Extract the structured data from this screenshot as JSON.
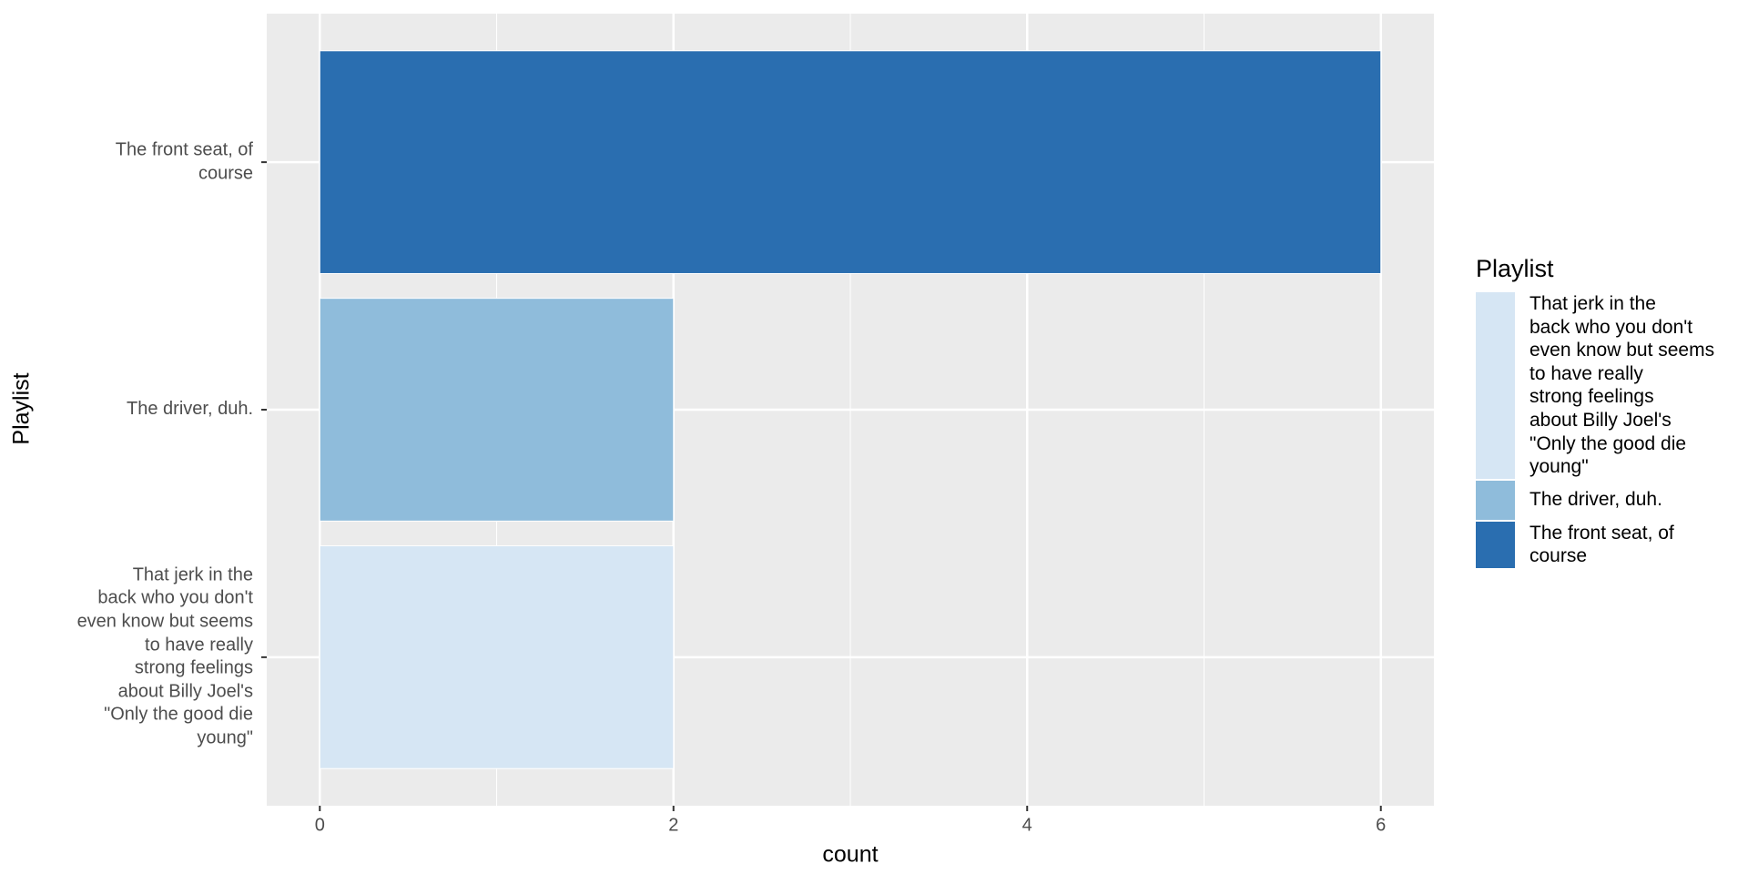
{
  "chart_data": {
    "type": "bar",
    "orientation": "horizontal",
    "categories": [
      "That jerk in the\nback who you don't\neven know but seems\nto have really\nstrong feelings\nabout Billy Joel's\n\"Only the good die\nyoung\"",
      "The driver, duh.",
      "The front seat, of\ncourse"
    ],
    "values": [
      2,
      2,
      6
    ],
    "colors": [
      "#d6e6f4",
      "#8fbcdb",
      "#2a6eb0"
    ],
    "xlabel": "count",
    "ylabel": "Playlist",
    "legend_title": "Playlist",
    "legend": "right",
    "xlim": [
      -0.3,
      6.3
    ],
    "xticks": [
      0,
      2,
      4,
      6
    ],
    "minor_xticks": [
      1,
      3,
      5
    ],
    "grid": true
  }
}
